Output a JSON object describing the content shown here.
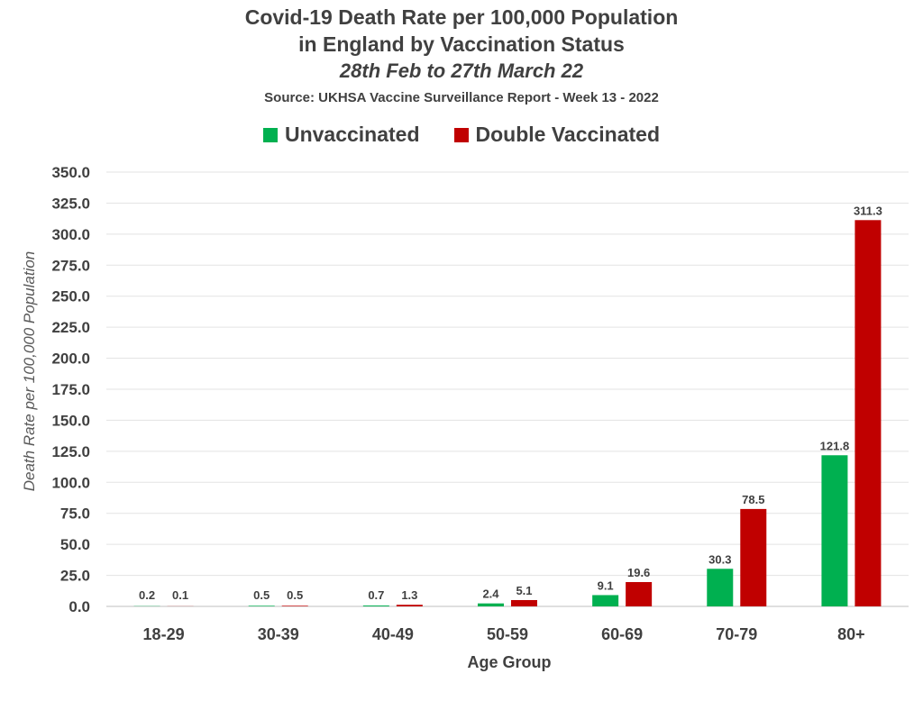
{
  "header": {
    "title_line1": "Covid-19 Death Rate per 100,000 Population",
    "title_line2": "in England by Vaccination Status",
    "subtitle": "28th Feb to 27th March 22",
    "source": "Source: UKHSA Vaccine Surveillance Report - Week 13 - 2022"
  },
  "legend": [
    {
      "label": "Unvaccinated",
      "color": "#00b050"
    },
    {
      "label": "Double Vaccinated",
      "color": "#c00000"
    }
  ],
  "chart_data": {
    "type": "bar",
    "title": "Covid-19 Death Rate per 100,000 Population in England by Vaccination Status",
    "subtitle": "28th Feb to 27th March 22",
    "source": "Source: UKHSA Vaccine Surveillance Report - Week 13 - 2022",
    "xlabel": "Age Group",
    "ylabel": "Death Rate per 100,000 Population",
    "ylim": [
      0,
      350
    ],
    "ytick_step": 25,
    "yticks": [
      "0.0",
      "25.0",
      "50.0",
      "75.0",
      "100.0",
      "125.0",
      "150.0",
      "175.0",
      "200.0",
      "225.0",
      "250.0",
      "275.0",
      "300.0",
      "325.0",
      "350.0"
    ],
    "grid": true,
    "legend_position": "top",
    "categories": [
      "18-29",
      "30-39",
      "40-49",
      "50-59",
      "60-69",
      "70-79",
      "80+"
    ],
    "series": [
      {
        "name": "Unvaccinated",
        "color": "#00b050",
        "values": [
          0.2,
          0.5,
          0.7,
          2.4,
          9.1,
          30.3,
          121.8
        ]
      },
      {
        "name": "Double Vaccinated",
        "color": "#c00000",
        "values": [
          0.1,
          0.5,
          1.3,
          5.1,
          19.6,
          78.5,
          311.3
        ]
      }
    ]
  }
}
